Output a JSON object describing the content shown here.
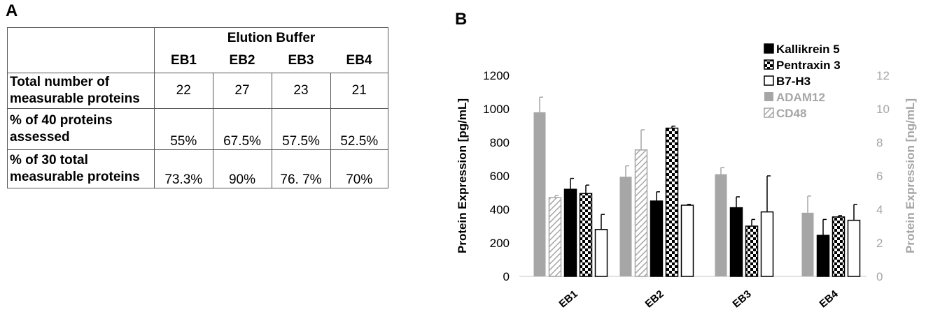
{
  "panel_a": {
    "letter": "A",
    "table": {
      "group_header": "Elution Buffer",
      "columns": [
        "EB1",
        "EB2",
        "EB3",
        "EB4"
      ],
      "rows": [
        {
          "label_line1": "Total number of",
          "label_line2": "measurable proteins",
          "values": [
            "22",
            "27",
            "23",
            "21"
          ]
        },
        {
          "label_line1": "% of 40 proteins",
          "label_line2": "assessed",
          "values": [
            "55%",
            "67.5%",
            "57.5%",
            "52.5%"
          ]
        },
        {
          "label_line1": "% of 30 total",
          "label_line2": "measurable proteins",
          "values": [
            "73.3%",
            "90%",
            "76. 7%",
            "70%"
          ]
        }
      ]
    }
  },
  "panel_b": {
    "letter": "B",
    "colors": {
      "black": "#000000",
      "grey": "#a6a6a6",
      "axis_right": "#a6a6a6"
    },
    "chart_data": {
      "type": "bar",
      "categories": [
        "EB1",
        "EB2",
        "EB3",
        "EB4"
      ],
      "ylabel": "Protein Expression [pg/mL]",
      "ylabel_right": "Protein Expression [ng/mL]",
      "ylim": [
        0,
        1200
      ],
      "ylim_right": [
        0,
        12
      ],
      "yticks": [
        "0",
        "200",
        "400",
        "600",
        "800",
        "1000",
        "1200"
      ],
      "yticks_right": [
        "0",
        "2",
        "4",
        "6",
        "8",
        "10",
        "12"
      ],
      "grid": false,
      "legend_position": "top-right",
      "series": [
        {
          "name": "ADAM12",
          "axis": "right",
          "style": "solid-grey",
          "values": [
            9.8,
            5.95,
            6.1,
            3.8
          ],
          "errors": [
            0.9,
            0.65,
            0.4,
            1.0
          ]
        },
        {
          "name": "CD48",
          "axis": "right",
          "style": "hatch-grey",
          "values": [
            4.7,
            7.55,
            null,
            null
          ],
          "errors": [
            0.12,
            1.2,
            null,
            null
          ]
        },
        {
          "name": "Kallikrein 5",
          "axis": "left",
          "style": "solid-black",
          "values": [
            520,
            450,
            410,
            245
          ],
          "errors": [
            65,
            55,
            65,
            95
          ]
        },
        {
          "name": "Pentraxin 3",
          "axis": "left",
          "style": "checker",
          "values": [
            495,
            885,
            300,
            355
          ],
          "errors": [
            50,
            12,
            40,
            8
          ]
        },
        {
          "name": "B7-H3",
          "axis": "left",
          "style": "outline",
          "values": [
            280,
            425,
            385,
            335
          ],
          "errors": [
            90,
            5,
            215,
            95
          ]
        }
      ]
    }
  }
}
